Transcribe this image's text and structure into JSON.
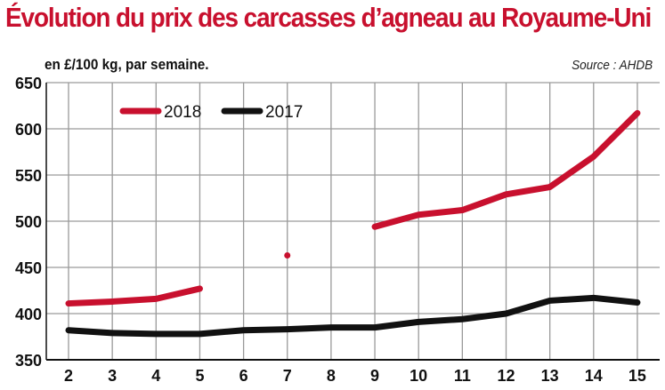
{
  "header": {
    "title": "Évolution  du prix des carcasses d’agneau au Royaume-Uni",
    "subtitle": "en £/100 kg, par semaine.",
    "source": "Source : AHDB"
  },
  "colors": {
    "red": "#c8102e",
    "black": "#111111",
    "grid": "#9a9a9a"
  },
  "chart_data": {
    "type": "line",
    "title": "Évolution  du prix des carcasses d’agneau au Royaume-Uni",
    "subtitle": "en £/100 kg, par semaine.",
    "xlabel": "",
    "ylabel": "",
    "x": [
      2,
      3,
      4,
      5,
      6,
      7,
      8,
      9,
      10,
      11,
      12,
      13,
      14,
      15
    ],
    "ylim": [
      350,
      650
    ],
    "yticks": [
      350,
      400,
      450,
      500,
      550,
      600,
      650
    ],
    "grid": true,
    "legend_position": "top-left",
    "series": [
      {
        "name": "2018",
        "color": "#c8102e",
        "values": [
          411,
          413,
          416,
          427,
          null,
          463,
          null,
          494,
          507,
          512,
          529,
          537,
          570,
          617
        ]
      },
      {
        "name": "2017",
        "color": "#111111",
        "values": [
          382,
          379,
          378,
          378,
          382,
          383,
          385,
          385,
          391,
          394,
          400,
          414,
          417,
          412
        ]
      }
    ]
  }
}
